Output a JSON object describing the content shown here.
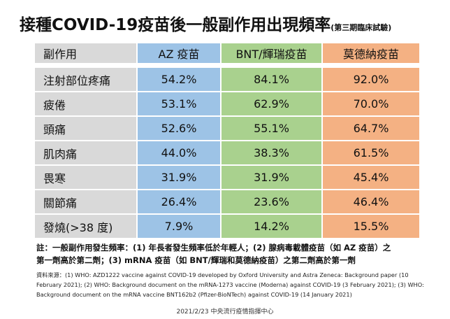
{
  "header": {
    "title": "接種COVID-19疫苗後一般副作用出現頻率",
    "subtitle": "(第三期臨床試驗)"
  },
  "table": {
    "columns": [
      "副作用",
      "AZ 疫苗",
      "BNT/輝瑞疫苗",
      "莫德納疫苗"
    ],
    "rows": [
      [
        "注射部位疼痛",
        "54.2%",
        "84.1%",
        "92.0%"
      ],
      [
        "疲倦",
        "53.1%",
        "62.9%",
        "70.0%"
      ],
      [
        "頭痛",
        "52.6%",
        "55.1%",
        "64.7%"
      ],
      [
        "肌肉痛",
        "44.0%",
        "38.3%",
        "61.5%"
      ],
      [
        "畏寒",
        "31.9%",
        "31.9%",
        "45.4%"
      ],
      [
        "關節痛",
        "26.4%",
        "23.6%",
        "46.4%"
      ],
      [
        "發燒(>38 度)",
        "7.9%",
        "14.2%",
        "15.5%"
      ]
    ]
  },
  "notes": [
    "註：一般副作用發生頻率：(1) 年長者發生頻率低於年輕人；(2) 腺病毒載體疫苗（如 AZ 疫苗）之",
    "第一劑高於第二劑；(3) mRNA 疫苗（如 BNT/輝瑞和莫德納疫苗）之第二劑高於第一劑"
  ],
  "sources": [
    "資料來源：(1) WHO: AZD1222 vaccine against COVID-19 developed by Oxford University and Astra Zeneca: Background paper (10",
    "February 2021); (2) WHO: Background document on the mRNA-1273 vaccine (Moderna) against COVID-19 (3 February 2021); (3) WHO:",
    "Background document on the mRNA vaccine BNT162b2 (Pfizer-BioNTech) against COVID-19 (14 January 2021)"
  ],
  "footer": "2021/2/23 中央流行疫情指揮中心"
}
